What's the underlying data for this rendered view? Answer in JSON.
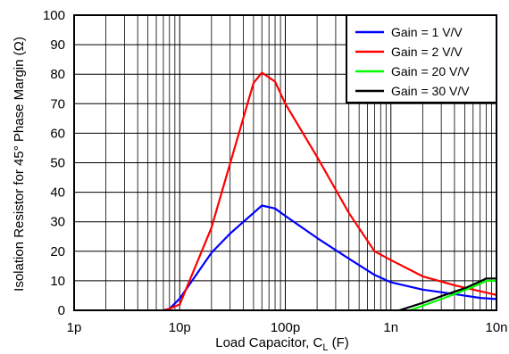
{
  "chart_data": {
    "type": "line",
    "title": "",
    "xlabel": "Load Capacitor, C",
    "xlabel_sub": "L",
    "xlabel_unit": " (F)",
    "ylabel": "Isolation Resistor for 45° Phase Margin (Ω)",
    "x_scale": "log",
    "xlim": [
      1e-12,
      1e-08
    ],
    "ylim": [
      0,
      100
    ],
    "x_ticks": [
      {
        "value": 1e-12,
        "label": "1p"
      },
      {
        "value": 1e-11,
        "label": "10p"
      },
      {
        "value": 1e-10,
        "label": "100p"
      },
      {
        "value": 1e-09,
        "label": "1n"
      },
      {
        "value": 1e-08,
        "label": "10n"
      }
    ],
    "y_ticks": [
      0,
      10,
      20,
      30,
      40,
      50,
      60,
      70,
      80,
      90,
      100
    ],
    "grid": true,
    "legend_position": "top-right",
    "series": [
      {
        "name": "Gain = 1 V/V",
        "color": "#0000ff",
        "points": [
          [
            7e-12,
            0
          ],
          [
            8e-12,
            0.5
          ],
          [
            1e-11,
            4
          ],
          [
            2e-11,
            19.5
          ],
          [
            3e-11,
            26
          ],
          [
            5e-11,
            33
          ],
          [
            6e-11,
            35.5
          ],
          [
            8e-11,
            34.5
          ],
          [
            1e-10,
            32
          ],
          [
            2e-10,
            24.5
          ],
          [
            4e-10,
            17.5
          ],
          [
            7e-10,
            12
          ],
          [
            1e-09,
            9.5
          ],
          [
            2e-09,
            7
          ],
          [
            4e-09,
            5.5
          ],
          [
            7e-09,
            4.2
          ],
          [
            1e-08,
            3.8
          ]
        ]
      },
      {
        "name": "Gain = 2 V/V",
        "color": "#ff0000",
        "points": [
          [
            7e-12,
            0
          ],
          [
            8e-12,
            0.5
          ],
          [
            1e-11,
            2
          ],
          [
            2e-11,
            28
          ],
          [
            5e-11,
            77
          ],
          [
            6e-11,
            80.5
          ],
          [
            8e-11,
            77.5
          ],
          [
            1e-10,
            70
          ],
          [
            2e-10,
            52
          ],
          [
            4e-10,
            33
          ],
          [
            7e-10,
            20
          ],
          [
            1e-09,
            17
          ],
          [
            2e-09,
            11.5
          ],
          [
            4e-09,
            8.5
          ],
          [
            1e-08,
            5.2
          ]
        ]
      },
      {
        "name": "Gain = 20 V/V",
        "color": "#00ff00",
        "points": [
          [
            1.5e-09,
            0
          ],
          [
            2e-09,
            1.5
          ],
          [
            3e-09,
            3.8
          ],
          [
            5e-09,
            6.8
          ],
          [
            7e-09,
            9
          ],
          [
            8e-09,
            10
          ],
          [
            1e-08,
            10
          ]
        ]
      },
      {
        "name": "Gain = 30 V/V",
        "color": "#000000",
        "points": [
          [
            1.2e-09,
            0
          ],
          [
            2e-09,
            2.5
          ],
          [
            3e-09,
            4.8
          ],
          [
            5e-09,
            7.5
          ],
          [
            7e-09,
            9.8
          ],
          [
            8e-09,
            10.8
          ],
          [
            1e-08,
            10.8
          ]
        ]
      }
    ]
  }
}
